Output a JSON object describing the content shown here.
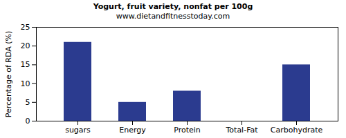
{
  "chart_data": {
    "type": "bar",
    "title": "Yogurt, fruit variety, nonfat per 100g",
    "subtitle": "www.dietandfitnesstoday.com",
    "y_label": "Percentage of RDA (%)",
    "categories": [
      "sugars",
      "Energy",
      "Protein",
      "Total-Fat",
      "Carbohydrate"
    ],
    "values": [
      21,
      5,
      8,
      0,
      15
    ],
    "color": "#2b3b8f",
    "ylim": [
      0,
      25
    ],
    "yticks": [
      0,
      5,
      10,
      15,
      20,
      25
    ],
    "grid": false
  }
}
